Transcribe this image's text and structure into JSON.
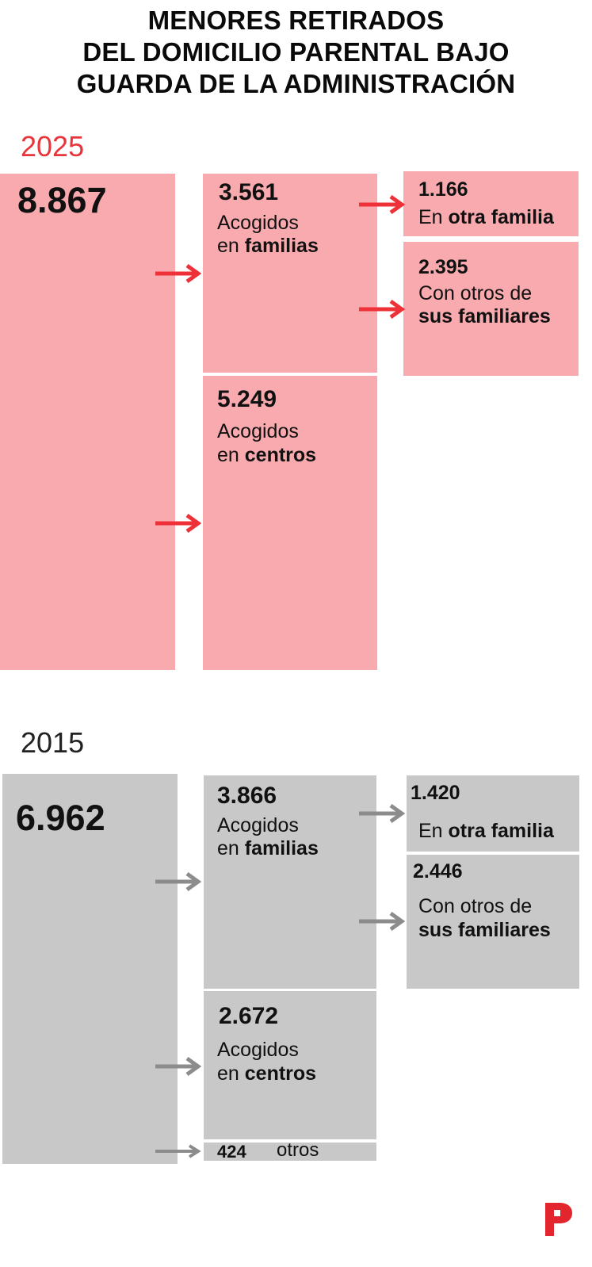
{
  "title": {
    "lines": [
      "MENORES RETIRADOS",
      "DEL DOMICILIO PARENTAL BAJO",
      "GUARDA DE LA ADMINISTRACIÓN"
    ]
  },
  "colors": {
    "box_2025": "#f9aaae",
    "arrow_2025": "#ee3038",
    "year_2025": "#e8343b",
    "box_2015": "#c8c8c8",
    "arrow_2015": "#8c8c8c",
    "year_2015": "#222222",
    "logo": "#e3262e"
  },
  "panel_2025": {
    "year": "2025",
    "total": "8.867",
    "familias": {
      "value": "3.561",
      "line1": "Acogidos",
      "line2_prefix": "en ",
      "line2_bold": "familias"
    },
    "centros": {
      "value": "5.249",
      "line1": "Acogidos",
      "line2_prefix": "en ",
      "line2_bold": "centros"
    },
    "otra_familia": {
      "value": "1.166",
      "prefix": "En ",
      "bold": "otra familia"
    },
    "sus_familiares": {
      "value": "2.395",
      "line1": "Con otros de",
      "line2_bold": "sus familiares"
    }
  },
  "panel_2015": {
    "year": "2015",
    "total": "6.962",
    "familias": {
      "value": "3.866",
      "line1": "Acogidos",
      "line2_prefix": "en ",
      "line2_bold": "familias"
    },
    "centros": {
      "value": "2.672",
      "line1": "Acogidos",
      "line2_prefix": "en ",
      "line2_bold": "centros"
    },
    "otros": {
      "value": "424",
      "label": "otros"
    },
    "otra_familia": {
      "value": "1.420",
      "prefix": "En ",
      "bold": "otra familia"
    },
    "sus_familiares": {
      "value": "2.446",
      "line1": "Con otros de",
      "line2_bold": "sus familiares"
    }
  },
  "logo": {
    "icon": "publisher-p-logo-icon"
  }
}
